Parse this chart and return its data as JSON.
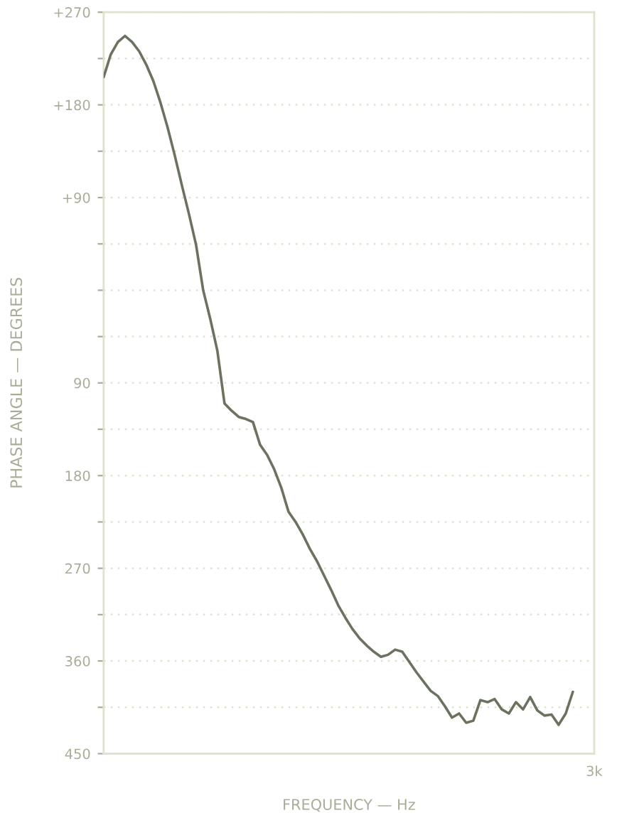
{
  "chart_data": {
    "type": "line",
    "xlabel": "FREQUENCY — Hz",
    "ylabel": "PHASE ANGLE — DEGREES",
    "categories": [
      null,
      null,
      null,
      null,
      null,
      null,
      null,
      null,
      null,
      null,
      null,
      null,
      null,
      null,
      null,
      null,
      null,
      null,
      null,
      null,
      null,
      null,
      null,
      null,
      null,
      null,
      null,
      null,
      null,
      null,
      null,
      null,
      null,
      null,
      null,
      null,
      null,
      null,
      null,
      null,
      null,
      null,
      null,
      null,
      null,
      null,
      null,
      null,
      null,
      null,
      null,
      null,
      null,
      null,
      null,
      null,
      null,
      null,
      null,
      null,
      null,
      null,
      null,
      null,
      null,
      null,
      null,
      null,
      null,
      "3k"
    ],
    "series": [
      {
        "color": "#6b7360",
        "values": [
          207,
          229,
          241,
          247,
          241,
          232,
          219,
          203,
          182,
          158,
          131,
          102,
          74,
          44,
          0,
          -28,
          -59,
          -110,
          -117,
          -123,
          -125,
          -128,
          -150,
          -160,
          -174,
          -192,
          -215,
          -225,
          -237,
          -251,
          -263,
          -277,
          -291,
          -306,
          -318,
          -329,
          -338,
          -345,
          -351,
          -356,
          -354,
          -349,
          -351,
          -361,
          -371,
          -380,
          -389,
          -394,
          -404,
          -415,
          -411,
          -420,
          -418,
          -398,
          -400,
          -397,
          -407,
          -411,
          -400,
          -407,
          -395,
          -408,
          -413,
          -412,
          -422,
          -411,
          -390,
          null,
          null,
          null
        ]
      }
    ],
    "ylim": [
      -450,
      270
    ],
    "yticks": [
      {
        "value": 270,
        "label": "+270"
      },
      {
        "value": 225,
        "label": null
      },
      {
        "value": 180,
        "label": "+180"
      },
      {
        "value": 135,
        "label": null
      },
      {
        "value": 90,
        "label": "+90"
      },
      {
        "value": 45,
        "label": null
      },
      {
        "value": 0,
        "label": null
      },
      {
        "value": -45,
        "label": null
      },
      {
        "value": -90,
        "label": "90"
      },
      {
        "value": -135,
        "label": null
      },
      {
        "value": -180,
        "label": "180"
      },
      {
        "value": -225,
        "label": null
      },
      {
        "value": -270,
        "label": "270"
      },
      {
        "value": -315,
        "label": null
      },
      {
        "value": -360,
        "label": "360"
      },
      {
        "value": -405,
        "label": null
      },
      {
        "value": -450,
        "label": "450"
      }
    ],
    "grid": "y",
    "line_style": "solid"
  }
}
